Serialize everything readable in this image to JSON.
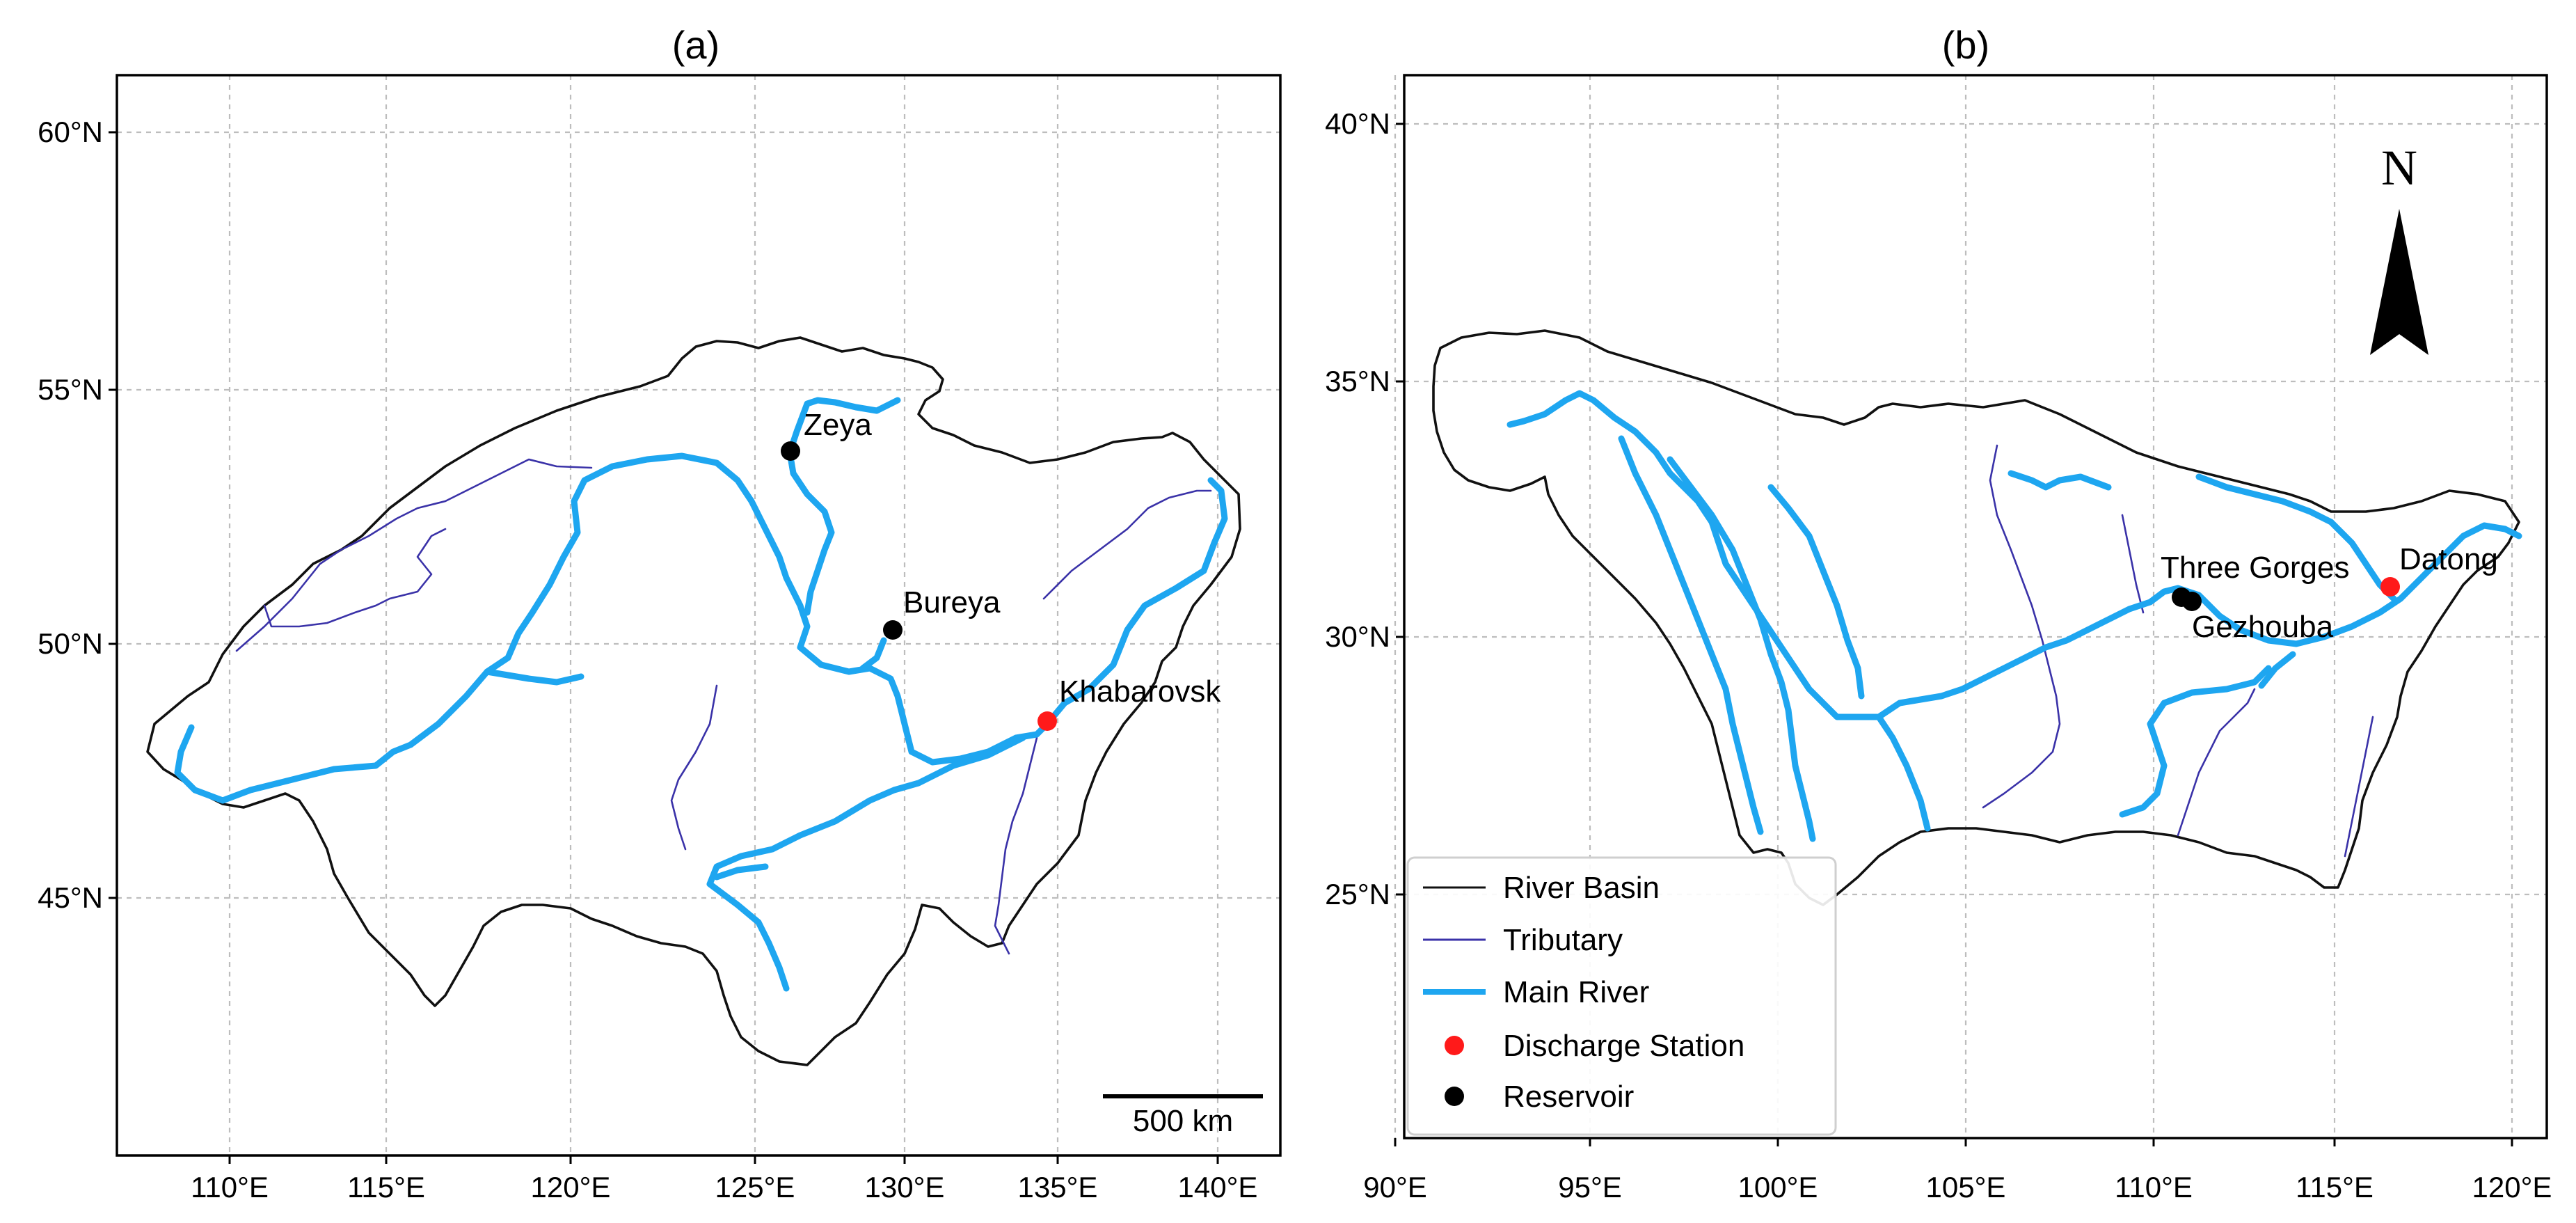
{
  "panel_a": {
    "title": "(a)",
    "x_ticks": [
      "110°E",
      "115°E",
      "120°E",
      "125°E",
      "130°E",
      "135°E",
      "140°E"
    ],
    "y_ticks": [
      "45°N",
      "50°N",
      "55°N",
      "60°N"
    ],
    "scale_bar_label": "500 km",
    "stations": [
      {
        "name": "Zeya",
        "type": "Reservoir",
        "lon": 127.2,
        "lat": 53.8
      },
      {
        "name": "Bureya",
        "type": "Reservoir",
        "lon": 130.3,
        "lat": 50.3
      },
      {
        "name": "Khabarovsk",
        "type": "Discharge Station",
        "lon": 135.1,
        "lat": 48.5
      }
    ]
  },
  "panel_b": {
    "title": "(b)",
    "x_ticks": [
      "90°E",
      "95°E",
      "100°E",
      "105°E",
      "110°E",
      "115°E",
      "120°E"
    ],
    "y_ticks": [
      "25°N",
      "30°N",
      "35°N",
      "40°N"
    ],
    "north_label": "N",
    "stations": [
      {
        "name": "Three Gorges",
        "type": "Reservoir",
        "lon": 111.0,
        "lat": 30.8
      },
      {
        "name": "Gezhouba",
        "type": "Reservoir",
        "lon": 111.3,
        "lat": 30.7
      },
      {
        "name": "Datong",
        "type": "Discharge Station",
        "lon": 116.6,
        "lat": 31.0
      }
    ]
  },
  "legend": {
    "river_basin": "River Basin",
    "tributary": "Tributary",
    "main_river": "Main River",
    "discharge_station": "Discharge Station",
    "reservoir": "Reservoir"
  },
  "colors": {
    "river_basin": "#111111",
    "tributary": "#3a32a8",
    "main_river": "#1ea6f0",
    "discharge_station": "#ff1a1a",
    "reservoir": "#000000"
  }
}
